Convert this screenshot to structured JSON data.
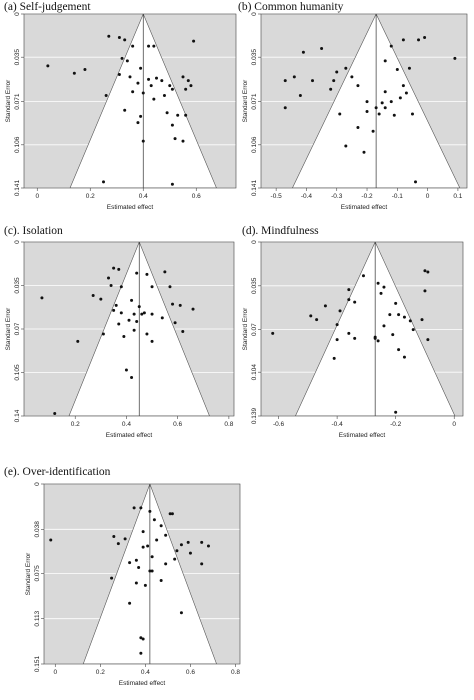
{
  "chart_data": [
    {
      "type": "scatter",
      "title": "(a) Self-judgement",
      "xlabel": "Estimated effect",
      "ylabel": "Standard Error",
      "xlim": [
        -0.05,
        0.75
      ],
      "ylim": [
        0,
        0.141
      ],
      "y_reversed": true,
      "xticks": [
        0,
        0.2,
        0.4,
        0.6
      ],
      "yticks": [
        0,
        0.035,
        0.071,
        0.106,
        0.141
      ],
      "ytick_labels": [
        "0",
        "0.035",
        "0.071",
        "0.106",
        "0.141"
      ],
      "pooled_effect": 0.4,
      "grid": true,
      "points": [
        [
          0.04,
          0.042
        ],
        [
          0.27,
          0.018
        ],
        [
          0.31,
          0.019
        ],
        [
          0.33,
          0.021
        ],
        [
          0.36,
          0.026
        ],
        [
          0.42,
          0.026
        ],
        [
          0.44,
          0.026
        ],
        [
          0.59,
          0.022
        ],
        [
          0.32,
          0.036
        ],
        [
          0.34,
          0.038
        ],
        [
          0.39,
          0.044
        ],
        [
          0.31,
          0.049
        ],
        [
          0.35,
          0.051
        ],
        [
          0.42,
          0.053
        ],
        [
          0.45,
          0.052
        ],
        [
          0.47,
          0.054
        ],
        [
          0.38,
          0.056
        ],
        [
          0.43,
          0.058
        ],
        [
          0.5,
          0.058
        ],
        [
          0.55,
          0.051
        ],
        [
          0.57,
          0.054
        ],
        [
          0.58,
          0.058
        ],
        [
          0.51,
          0.061
        ],
        [
          0.56,
          0.061
        ],
        [
          0.26,
          0.066
        ],
        [
          0.36,
          0.063
        ],
        [
          0.4,
          0.064
        ],
        [
          0.48,
          0.066
        ],
        [
          0.44,
          0.069
        ],
        [
          0.33,
          0.078
        ],
        [
          0.39,
          0.083
        ],
        [
          0.49,
          0.08
        ],
        [
          0.53,
          0.082
        ],
        [
          0.56,
          0.082
        ],
        [
          0.38,
          0.088
        ],
        [
          0.51,
          0.09
        ],
        [
          0.52,
          0.101
        ],
        [
          0.55,
          0.103
        ],
        [
          0.4,
          0.103
        ],
        [
          0.25,
          0.136
        ],
        [
          0.51,
          0.138
        ],
        [
          0.14,
          0.048
        ],
        [
          0.18,
          0.045
        ]
      ]
    },
    {
      "type": "scatter",
      "title": "(b) Common humanity",
      "xlabel": "Estimated effect",
      "ylabel": "Standard Error",
      "xlim": [
        -0.55,
        0.13
      ],
      "ylim": [
        0,
        0.141
      ],
      "y_reversed": true,
      "xticks": [
        -0.5,
        -0.4,
        -0.3,
        -0.2,
        -0.1,
        0,
        0.1
      ],
      "yticks": [
        0,
        0.035,
        0.071,
        0.106,
        0.141
      ],
      "ytick_labels": [
        "0",
        "0.035",
        "0.071",
        "0.106",
        "0.141"
      ],
      "pooled_effect": -0.17,
      "grid": true,
      "points": [
        [
          -0.08,
          0.021
        ],
        [
          -0.03,
          0.021
        ],
        [
          -0.01,
          0.019
        ],
        [
          -0.12,
          0.026
        ],
        [
          -0.35,
          0.028
        ],
        [
          -0.41,
          0.031
        ],
        [
          0.09,
          0.036
        ],
        [
          -0.14,
          0.038
        ],
        [
          -0.1,
          0.045
        ],
        [
          -0.06,
          0.044
        ],
        [
          -0.27,
          0.044
        ],
        [
          -0.3,
          0.047
        ],
        [
          -0.47,
          0.054
        ],
        [
          -0.44,
          0.051
        ],
        [
          -0.38,
          0.054
        ],
        [
          -0.31,
          0.054
        ],
        [
          -0.25,
          0.051
        ],
        [
          -0.23,
          0.058
        ],
        [
          -0.32,
          0.061
        ],
        [
          -0.14,
          0.063
        ],
        [
          -0.08,
          0.058
        ],
        [
          -0.07,
          0.064
        ],
        [
          -0.09,
          0.068
        ],
        [
          -0.12,
          0.071
        ],
        [
          -0.15,
          0.072
        ],
        [
          -0.17,
          0.076
        ],
        [
          -0.2,
          0.071
        ],
        [
          -0.42,
          0.066
        ],
        [
          -0.47,
          0.076
        ],
        [
          -0.29,
          0.081
        ],
        [
          -0.2,
          0.079
        ],
        [
          -0.16,
          0.081
        ],
        [
          -0.11,
          0.082
        ],
        [
          -0.05,
          0.081
        ],
        [
          -0.23,
          0.092
        ],
        [
          -0.18,
          0.095
        ],
        [
          -0.21,
          0.112
        ],
        [
          -0.27,
          0.107
        ],
        [
          -0.04,
          0.136
        ],
        [
          -0.14,
          0.076
        ]
      ]
    },
    {
      "type": "scatter",
      "title": "(c). Isolation",
      "xlabel": "Estimated effect",
      "ylabel": "Standard Error",
      "xlim": [
        0.0,
        0.82
      ],
      "ylim": [
        0,
        0.14
      ],
      "y_reversed": true,
      "xticks": [
        0.2,
        0.4,
        0.6,
        0.8
      ],
      "yticks": [
        0,
        0.035,
        0.07,
        0.105,
        0.14
      ],
      "ytick_labels": [
        "0",
        "0.035",
        "0.07",
        "0.105",
        "0.14"
      ],
      "pooled_effect": 0.45,
      "grid": true,
      "points": [
        [
          0.35,
          0.021
        ],
        [
          0.37,
          0.022
        ],
        [
          0.44,
          0.025
        ],
        [
          0.48,
          0.026
        ],
        [
          0.55,
          0.024
        ],
        [
          0.33,
          0.029
        ],
        [
          0.34,
          0.035
        ],
        [
          0.38,
          0.036
        ],
        [
          0.5,
          0.036
        ],
        [
          0.57,
          0.036
        ],
        [
          0.07,
          0.045
        ],
        [
          0.27,
          0.043
        ],
        [
          0.3,
          0.046
        ],
        [
          0.42,
          0.047
        ],
        [
          0.58,
          0.05
        ],
        [
          0.61,
          0.051
        ],
        [
          0.66,
          0.054
        ],
        [
          0.36,
          0.051
        ],
        [
          0.45,
          0.052
        ],
        [
          0.35,
          0.055
        ],
        [
          0.38,
          0.057
        ],
        [
          0.43,
          0.058
        ],
        [
          0.47,
          0.057
        ],
        [
          0.5,
          0.058
        ],
        [
          0.54,
          0.061
        ],
        [
          0.41,
          0.063
        ],
        [
          0.44,
          0.064
        ],
        [
          0.37,
          0.066
        ],
        [
          0.59,
          0.065
        ],
        [
          0.43,
          0.071
        ],
        [
          0.62,
          0.072
        ],
        [
          0.21,
          0.08
        ],
        [
          0.31,
          0.074
        ],
        [
          0.39,
          0.076
        ],
        [
          0.48,
          0.074
        ],
        [
          0.5,
          0.08
        ],
        [
          0.4,
          0.103
        ],
        [
          0.42,
          0.109
        ],
        [
          0.12,
          0.138
        ],
        [
          0.46,
          0.058
        ]
      ]
    },
    {
      "type": "scatter",
      "title": "(d). Mindfulness",
      "xlabel": "Estimated effect",
      "ylabel": "Standard Error",
      "xlim": [
        -0.66,
        0.03
      ],
      "ylim": [
        0,
        0.139
      ],
      "y_reversed": true,
      "xticks": [
        -0.6,
        -0.4,
        -0.2,
        0
      ],
      "yticks": [
        0,
        0.035,
        0.07,
        0.104,
        0.139
      ],
      "ytick_labels": [
        "0",
        "0.035",
        "0.07",
        "0.104",
        "0.139"
      ],
      "pooled_effect": -0.27,
      "grid": true,
      "points": [
        [
          -0.31,
          0.027
        ],
        [
          -0.1,
          0.023
        ],
        [
          -0.09,
          0.024
        ],
        [
          -0.26,
          0.033
        ],
        [
          -0.24,
          0.036
        ],
        [
          -0.36,
          0.038
        ],
        [
          -0.25,
          0.041
        ],
        [
          -0.1,
          0.039
        ],
        [
          -0.36,
          0.046
        ],
        [
          -0.34,
          0.048
        ],
        [
          -0.2,
          0.049
        ],
        [
          -0.44,
          0.051
        ],
        [
          -0.39,
          0.055
        ],
        [
          -0.22,
          0.058
        ],
        [
          -0.19,
          0.058
        ],
        [
          -0.49,
          0.059
        ],
        [
          -0.47,
          0.062
        ],
        [
          -0.17,
          0.06
        ],
        [
          -0.15,
          0.063
        ],
        [
          -0.4,
          0.066
        ],
        [
          -0.24,
          0.067
        ],
        [
          -0.62,
          0.073
        ],
        [
          -0.36,
          0.073
        ],
        [
          -0.34,
          0.077
        ],
        [
          -0.4,
          0.078
        ],
        [
          -0.27,
          0.076
        ],
        [
          -0.21,
          0.074
        ],
        [
          -0.26,
          0.079
        ],
        [
          -0.19,
          0.086
        ],
        [
          -0.41,
          0.093
        ],
        [
          -0.09,
          0.078
        ],
        [
          -0.14,
          0.07
        ],
        [
          -0.11,
          0.062
        ],
        [
          -0.2,
          0.136
        ],
        [
          -0.17,
          0.092
        ],
        [
          -0.27,
          0.077
        ]
      ]
    },
    {
      "type": "scatter",
      "title": "(e). Over-identification",
      "xlabel": "Estimated effect",
      "ylabel": "Standard Error",
      "xlim": [
        -0.05,
        0.82
      ],
      "ylim": [
        0,
        0.151
      ],
      "y_reversed": true,
      "xticks": [
        0,
        0.2,
        0.4,
        0.6,
        0.8
      ],
      "yticks": [
        0,
        0.038,
        0.075,
        0.113,
        0.151
      ],
      "ytick_labels": [
        "0",
        "0.038",
        "0.075",
        "0.113",
        "0.151"
      ],
      "pooled_effect": 0.42,
      "grid": true,
      "points": [
        [
          0.35,
          0.02
        ],
        [
          0.38,
          0.02
        ],
        [
          0.42,
          0.023
        ],
        [
          0.51,
          0.025
        ],
        [
          0.52,
          0.025
        ],
        [
          0.44,
          0.03
        ],
        [
          0.47,
          0.035
        ],
        [
          0.39,
          0.04
        ],
        [
          0.26,
          0.044
        ],
        [
          0.31,
          0.046
        ],
        [
          0.45,
          0.047
        ],
        [
          0.49,
          0.043
        ],
        [
          -0.02,
          0.047
        ],
        [
          0.28,
          0.05
        ],
        [
          0.39,
          0.053
        ],
        [
          0.41,
          0.052
        ],
        [
          0.56,
          0.051
        ],
        [
          0.59,
          0.049
        ],
        [
          0.65,
          0.049
        ],
        [
          0.68,
          0.052
        ],
        [
          0.54,
          0.056
        ],
        [
          0.6,
          0.058
        ],
        [
          0.43,
          0.061
        ],
        [
          0.36,
          0.064
        ],
        [
          0.33,
          0.066
        ],
        [
          0.49,
          0.067
        ],
        [
          0.53,
          0.063
        ],
        [
          0.65,
          0.067
        ],
        [
          0.37,
          0.07
        ],
        [
          0.43,
          0.073
        ],
        [
          0.25,
          0.079
        ],
        [
          0.36,
          0.083
        ],
        [
          0.4,
          0.085
        ],
        [
          0.47,
          0.081
        ],
        [
          0.33,
          0.1
        ],
        [
          0.56,
          0.108
        ],
        [
          0.38,
          0.129
        ],
        [
          0.39,
          0.13
        ],
        [
          0.38,
          0.142
        ],
        [
          0.42,
          0.073
        ]
      ]
    }
  ]
}
